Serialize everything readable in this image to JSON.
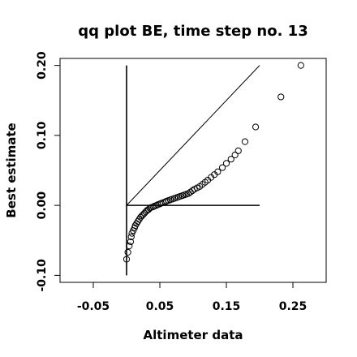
{
  "chart_data": {
    "type": "scatter",
    "title": "qq plot BE, time step no. 13",
    "xlabel": "Altimeter data",
    "ylabel": "Best estimate",
    "xlim": [
      -0.1,
      0.3
    ],
    "ylim": [
      -0.11,
      0.21
    ],
    "x_ticks": [
      -0.05,
      0.05,
      0.15,
      0.25
    ],
    "x_tick_labels": [
      "-0.05",
      "0.05",
      "0.15",
      "0.25"
    ],
    "y_ticks": [
      -0.1,
      0.0,
      0.1,
      0.2
    ],
    "y_tick_labels": [
      "-0.10",
      "0.00",
      "0.10",
      "0.20"
    ],
    "grid": false,
    "legend": "none",
    "reference_lines": [
      {
        "name": "identity",
        "from": [
          0.0,
          0.0
        ],
        "to": [
          0.2,
          0.2
        ]
      },
      {
        "name": "x-axis",
        "from": [
          0.0,
          0.0
        ],
        "to": [
          0.2,
          0.0
        ]
      },
      {
        "name": "y-axis",
        "from": [
          0.0,
          -0.1
        ],
        "to": [
          0.0,
          0.2
        ]
      }
    ],
    "points": [
      [
        0.0,
        -0.077
      ],
      [
        0.002,
        -0.067
      ],
      [
        0.004,
        -0.058
      ],
      [
        0.006,
        -0.052
      ],
      [
        0.007,
        -0.045
      ],
      [
        0.008,
        -0.04
      ],
      [
        0.01,
        -0.036
      ],
      [
        0.012,
        -0.032
      ],
      [
        0.013,
        -0.029
      ],
      [
        0.015,
        -0.026
      ],
      [
        0.017,
        -0.023
      ],
      [
        0.019,
        -0.02
      ],
      [
        0.021,
        -0.017
      ],
      [
        0.023,
        -0.015
      ],
      [
        0.025,
        -0.013
      ],
      [
        0.027,
        -0.011
      ],
      [
        0.029,
        -0.009
      ],
      [
        0.031,
        -0.007
      ],
      [
        0.033,
        -0.006
      ],
      [
        0.035,
        -0.004
      ],
      [
        0.037,
        -0.003
      ],
      [
        0.04,
        -0.002
      ],
      [
        0.042,
        -0.001
      ],
      [
        0.045,
        0.0
      ],
      [
        0.047,
        0.001
      ],
      [
        0.05,
        0.002
      ],
      [
        0.052,
        0.003
      ],
      [
        0.055,
        0.004
      ],
      [
        0.058,
        0.005
      ],
      [
        0.06,
        0.006
      ],
      [
        0.063,
        0.007
      ],
      [
        0.066,
        0.008
      ],
      [
        0.069,
        0.009
      ],
      [
        0.072,
        0.01
      ],
      [
        0.075,
        0.011
      ],
      [
        0.078,
        0.012
      ],
      [
        0.081,
        0.013
      ],
      [
        0.084,
        0.014
      ],
      [
        0.087,
        0.015
      ],
      [
        0.09,
        0.016
      ],
      [
        0.093,
        0.017
      ],
      [
        0.096,
        0.019
      ],
      [
        0.099,
        0.021
      ],
      [
        0.102,
        0.023
      ],
      [
        0.106,
        0.025
      ],
      [
        0.11,
        0.027
      ],
      [
        0.114,
        0.03
      ],
      [
        0.118,
        0.033
      ],
      [
        0.122,
        0.036
      ],
      [
        0.127,
        0.04
      ],
      [
        0.132,
        0.044
      ],
      [
        0.137,
        0.048
      ],
      [
        0.144,
        0.054
      ],
      [
        0.15,
        0.06
      ],
      [
        0.157,
        0.066
      ],
      [
        0.163,
        0.072
      ],
      [
        0.168,
        0.078
      ],
      [
        0.178,
        0.091
      ],
      [
        0.194,
        0.112
      ],
      [
        0.232,
        0.155
      ],
      [
        0.262,
        0.2
      ]
    ]
  }
}
